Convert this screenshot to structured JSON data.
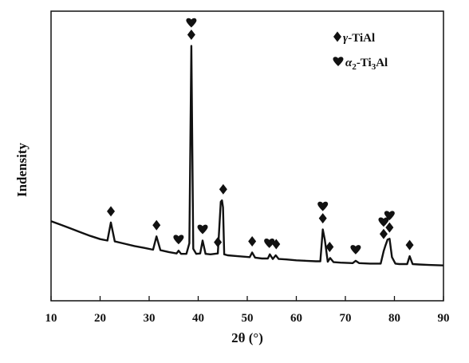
{
  "chart_data": {
    "type": "line",
    "title": "",
    "xlabel": "2θ (°)",
    "ylabel": "Indensity",
    "xlim": [
      10,
      90
    ],
    "xticks": [
      10,
      20,
      30,
      40,
      50,
      60,
      70,
      80,
      90
    ],
    "yticks_shown": false,
    "grid": false,
    "legend_position": "top-right",
    "legend": [
      {
        "symbol": "diamond",
        "label": "γ-TiAl",
        "text": "-TiAl",
        "greek": "γ"
      },
      {
        "symbol": "heart",
        "label": "α2-Ti3Al",
        "alpha": "α",
        "alpha_sub": "2",
        "mid": "-Ti",
        "mid_sub": "3",
        "tail": "Al"
      }
    ],
    "series": [
      {
        "x": [
          10,
          12,
          14,
          16,
          18,
          20,
          21.5,
          22.2,
          23,
          25,
          27,
          29,
          30.8,
          31.5,
          32.3,
          34,
          35.6,
          36.0,
          36.5,
          37.6,
          38.2,
          38.6,
          39.0,
          39.6,
          40.4,
          40.9,
          41.5,
          42.5,
          44.0,
          44.6,
          44.85,
          45.05,
          45.3,
          46.0,
          48,
          50.5,
          51.0,
          51.6,
          53,
          54.2,
          54.6,
          55.2,
          55.8,
          56.4,
          58,
          60,
          62,
          64,
          64.9,
          65.4,
          65.8,
          66.4,
          66.9,
          67.6,
          69,
          71.5,
          72.1,
          72.8,
          75,
          77.2,
          77.8,
          78.2,
          78.6,
          79.0,
          79.5,
          80.2,
          81,
          82.6,
          83.1,
          83.7,
          85,
          87,
          90
        ],
        "y": [
          100,
          92,
          84,
          76,
          68,
          61,
          58,
          97,
          56,
          51,
          46,
          42,
          38,
          67,
          37,
          33,
          30,
          36,
          29,
          29,
          52,
          480,
          40,
          29,
          30,
          58,
          29,
          28,
          30,
          142,
          145,
          130,
          28,
          26,
          24,
          22,
          32,
          21,
          19,
          19,
          28,
          18,
          26,
          18,
          17,
          15,
          14,
          13,
          13,
          82,
          60,
          12,
          20,
          11,
          10,
          9,
          14,
          9,
          8,
          8,
          35,
          48,
          60,
          62,
          22,
          8,
          7,
          7,
          24,
          7,
          6,
          5,
          4
        ]
      }
    ],
    "peak_markers": [
      {
        "x": 22.2,
        "symbols": [
          "diamond"
        ]
      },
      {
        "x": 31.5,
        "symbols": [
          "diamond"
        ]
      },
      {
        "x": 36.0,
        "symbols": [
          "heart"
        ]
      },
      {
        "x": 38.6,
        "symbols": [
          "heart",
          "diamond"
        ]
      },
      {
        "x": 40.9,
        "symbols": [
          "heart"
        ]
      },
      {
        "x": 44.0,
        "symbols": [
          "diamond"
        ]
      },
      {
        "x": 45.1,
        "symbols": [
          "diamond"
        ]
      },
      {
        "x": 51.0,
        "symbols": [
          "diamond"
        ]
      },
      {
        "x": 54.5,
        "symbols": [
          "heart"
        ]
      },
      {
        "x": 55.9,
        "symbols": [
          "diamond"
        ]
      },
      {
        "x": 65.4,
        "symbols": [
          "heart",
          "diamond"
        ]
      },
      {
        "x": 66.8,
        "symbols": [
          "diamond"
        ]
      },
      {
        "x": 72.1,
        "symbols": [
          "heart"
        ]
      },
      {
        "x": 77.8,
        "symbols": [
          "heart",
          "diamond"
        ]
      },
      {
        "x": 79.0,
        "symbols": [
          "heart",
          "diamond"
        ]
      },
      {
        "x": 83.1,
        "symbols": [
          "diamond"
        ]
      }
    ]
  }
}
